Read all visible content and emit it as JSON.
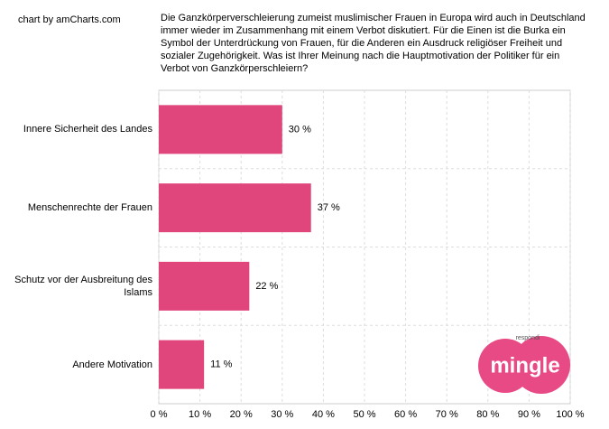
{
  "chart_data": {
    "type": "bar",
    "orientation": "horizontal",
    "credit": "chart by amCharts.com",
    "title": "Die Ganzkörperverschleierung zumeist muslimischer Frauen in Europa wird auch in Deutschland immer wieder im Zusammenhang mit einem Verbot diskutiert. Für die Einen ist die Burka ein Symbol der Unterdrückung von Frauen, für die Anderen ein Ausdruck religiöser Freiheit und sozialer Zugehörigkeit. Was ist Ihrer Meinung nach die Hauptmotivation der Politiker für ein Verbot von Ganzkörperschleiern?",
    "categories": [
      "Innere Sicherheit des Landes",
      "Menschenrechte der Frauen",
      "Schutz vor der Ausbreitung des Islams",
      "Andere Motivation"
    ],
    "values": [
      30,
      37,
      22,
      11
    ],
    "value_labels": [
      "30 %",
      "37 %",
      "22 %",
      "11 %"
    ],
    "color": "#e0457b",
    "xlim": [
      0,
      100
    ],
    "xticks": [
      {
        "value": 0,
        "label": "0 %"
      },
      {
        "value": 10,
        "label": "10 %"
      },
      {
        "value": 20,
        "label": "20 %"
      },
      {
        "value": 30,
        "label": "30 %"
      },
      {
        "value": 40,
        "label": "40 %"
      },
      {
        "value": 50,
        "label": "50 %"
      },
      {
        "value": 60,
        "label": "60 %"
      },
      {
        "value": 70,
        "label": "70 %"
      },
      {
        "value": 80,
        "label": "80 %"
      },
      {
        "value": 90,
        "label": "90 %"
      },
      {
        "value": 100,
        "label": "100 %"
      }
    ],
    "grid": true,
    "logo": {
      "small": "respondi",
      "text": "mingle"
    }
  }
}
